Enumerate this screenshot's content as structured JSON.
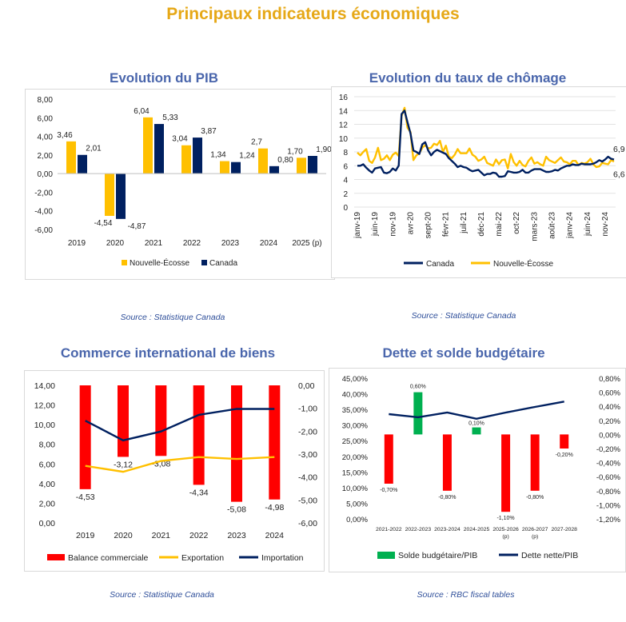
{
  "title": "Principaux indicateurs économiques",
  "colors": {
    "gold": "#FFC000",
    "navy": "#002060",
    "red": "#FF0000",
    "green": "#00B050",
    "title": "#4A66AC"
  },
  "panels": [
    {
      "title": "Evolution du PIB",
      "source": "Source : Statistique Canada"
    },
    {
      "title": "Evolution du taux de chômage",
      "source": "Source : Statistique Canada"
    },
    {
      "title": "Commerce international de biens",
      "source": "Source : Statistique Canada"
    },
    {
      "title": "Dette et solde budgétaire",
      "source": "Source : RBC fiscal tables"
    }
  ],
  "chart_data": [
    {
      "type": "bar",
      "title": "Evolution du PIB",
      "categories": [
        "2019",
        "2020",
        "2021",
        "2022",
        "2023",
        "2024",
        "2025 (p)"
      ],
      "series": [
        {
          "name": "Nouvelle-Écosse",
          "color": "#FFC000",
          "values": [
            3.46,
            -4.54,
            6.04,
            3.04,
            1.34,
            2.7,
            1.7
          ],
          "labels": [
            "3,46",
            "-4,54",
            "6,04",
            "3,04",
            "1,34",
            "2,7",
            "1,70"
          ]
        },
        {
          "name": "Canada",
          "color": "#002060",
          "values": [
            2.01,
            -4.87,
            5.33,
            3.87,
            1.24,
            0.8,
            1.9
          ],
          "labels": [
            "2,01",
            "-4,87",
            "5,33",
            "3,87",
            "1,24",
            "0,80",
            "1,90"
          ]
        }
      ],
      "ylim": [
        -6,
        8
      ],
      "yticks": [
        "-6,00",
        "-4,00",
        "-2,00",
        "0,00",
        "2,00",
        "4,00",
        "6,00",
        "8,00"
      ],
      "legend": "bottom"
    },
    {
      "type": "line",
      "title": "Evolution du taux de chômage",
      "x_labels": [
        "janv-19",
        "juin-19",
        "nov-19",
        "avr-20",
        "sept-20",
        "févr-21",
        "juil-21",
        "déc-21",
        "mai-22",
        "oct-22",
        "mars-23",
        "août-23",
        "janv-24",
        "juin-24",
        "nov-24"
      ],
      "series": [
        {
          "name": "Canada",
          "color": "#002060",
          "values": [
            6.0,
            6.0,
            6.2,
            5.7,
            5.3,
            5.0,
            5.6,
            5.7,
            5.8,
            5.0,
            4.9,
            5.1,
            5.6,
            5.3,
            6.0,
            13.5,
            14.0,
            12.3,
            10.7,
            8.2,
            8.0,
            7.7,
            9.1,
            9.4,
            8.2,
            7.5,
            8.0,
            8.3,
            8.1,
            7.9,
            7.7,
            7.1,
            6.7,
            6.3,
            5.8,
            6.0,
            5.8,
            5.7,
            5.4,
            5.2,
            5.3,
            5.4,
            5.0,
            4.6,
            4.8,
            4.8,
            5.0,
            4.9,
            4.4,
            4.4,
            4.5,
            5.2,
            5.1,
            5.0,
            5.0,
            5.1,
            5.4,
            5.0,
            5.0,
            5.3,
            5.5,
            5.5,
            5.5,
            5.3,
            5.1,
            5.1,
            5.2,
            5.4,
            5.3,
            5.6,
            5.8,
            6.0,
            6.0,
            6.2,
            6.1,
            6.1,
            6.3,
            6.2,
            6.2,
            6.2,
            6.3,
            6.5,
            6.8,
            6.6,
            6.9,
            7.3,
            7.0,
            6.9
          ]
        },
        {
          "name": "Nouvelle-Écosse",
          "color": "#FFC000",
          "values": [
            7.9,
            7.5,
            8.0,
            8.4,
            6.7,
            6.4,
            7.2,
            8.6,
            6.8,
            7.0,
            7.5,
            6.8,
            7.6,
            7.9,
            7.4,
            13.2,
            14.4,
            11.5,
            10.9,
            6.8,
            7.5,
            7.8,
            8.6,
            9.0,
            8.5,
            8.6,
            9.2,
            9.0,
            9.6,
            8.0,
            8.9,
            7.3,
            7.1,
            7.6,
            8.4,
            7.8,
            7.8,
            7.8,
            8.5,
            7.6,
            7.3,
            6.7,
            6.9,
            7.3,
            6.4,
            6.2,
            6.0,
            6.9,
            6.2,
            6.8,
            6.9,
            5.6,
            7.7,
            6.5,
            6.0,
            6.7,
            6.1,
            5.9,
            6.7,
            7.2,
            6.3,
            6.5,
            6.2,
            6.0,
            7.3,
            6.8,
            6.6,
            6.4,
            6.8,
            7.2,
            6.6,
            6.5,
            6.2,
            6.7,
            6.7,
            6.1,
            6.4,
            6.3,
            6.5,
            7.0,
            6.2,
            5.8,
            5.9,
            6.4,
            6.3,
            6.2,
            6.8,
            6.6
          ]
        }
      ],
      "end_labels": [
        "6,9",
        "6,6"
      ],
      "ylim": [
        0,
        16
      ],
      "yticks": [
        "0",
        "2",
        "4",
        "6",
        "8",
        "10",
        "12",
        "14",
        "16"
      ],
      "legend": "bottom"
    },
    {
      "type": "bar",
      "title": "Commerce international de biens",
      "categories": [
        "2019",
        "2020",
        "2021",
        "2022",
        "2023",
        "2024"
      ],
      "series": [
        {
          "name": "Balance commerciale",
          "color": "#FF0000",
          "axis": "right",
          "values": [
            -4.53,
            -3.12,
            -3.08,
            -4.34,
            -5.08,
            -4.98
          ],
          "labels": [
            "-4,53",
            "-3,12",
            "-3,08",
            "-4,34",
            "-5,08",
            "-4,98"
          ]
        },
        {
          "name": "Exportation",
          "color": "#FFC000",
          "type": "line",
          "axis": "left",
          "values": [
            5.8,
            5.2,
            6.3,
            6.7,
            6.5,
            6.7
          ]
        },
        {
          "name": "Importation",
          "color": "#002060",
          "type": "line",
          "axis": "left",
          "values": [
            10.4,
            8.4,
            9.3,
            11.0,
            11.6,
            11.6
          ]
        }
      ],
      "ylim_left": [
        0,
        14
      ],
      "ylim_right": [
        -6,
        0
      ],
      "yticks_left": [
        "0,00",
        "2,00",
        "4,00",
        "6,00",
        "8,00",
        "10,00",
        "12,00",
        "14,00"
      ],
      "yticks_right": [
        "-6,00",
        "-5,00",
        "-4,00",
        "-3,00",
        "-2,00",
        "-1,00",
        "0,00"
      ],
      "legend": "bottom"
    },
    {
      "type": "bar",
      "title": "Dette et solde budgétaire",
      "categories": [
        [
          "2021-2022"
        ],
        [
          "2022-2023"
        ],
        [
          "2023-2024"
        ],
        [
          "2024-2025"
        ],
        [
          "2025-2026",
          "(p)"
        ],
        [
          "2026-2027",
          "(p)"
        ],
        [
          "2027-2028"
        ]
      ],
      "series": [
        {
          "name": "Solde budgétaire/PIB",
          "axis": "right",
          "values": [
            -0.7,
            0.6,
            -0.8,
            0.1,
            -1.1,
            -0.8,
            -0.2
          ],
          "labels": [
            "-0,70%",
            "0,60%",
            "-0,80%",
            "0,10%",
            "-1,10%",
            "-0,80%",
            "-0,20%"
          ]
        },
        {
          "name": "Dette nette/PIB",
          "color": "#002060",
          "type": "line",
          "axis": "left",
          "values": [
            33.5,
            32.5,
            34.0,
            32.0,
            34.0,
            35.8,
            37.5
          ]
        }
      ],
      "ylim_left": [
        0,
        45
      ],
      "ylim_right": [
        -1.2,
        0.8
      ],
      "yticks_left": [
        "0,00%",
        "5,00%",
        "10,00%",
        "15,00%",
        "20,00%",
        "25,00%",
        "30,00%",
        "35,00%",
        "40,00%",
        "45,00%"
      ],
      "yticks_right": [
        "-1,20%",
        "-1,00%",
        "-0,80%",
        "-0,60%",
        "-0,40%",
        "-0,20%",
        "0,00%",
        "0,20%",
        "0,40%",
        "0,60%",
        "0,80%"
      ],
      "legend": "bottom"
    }
  ]
}
